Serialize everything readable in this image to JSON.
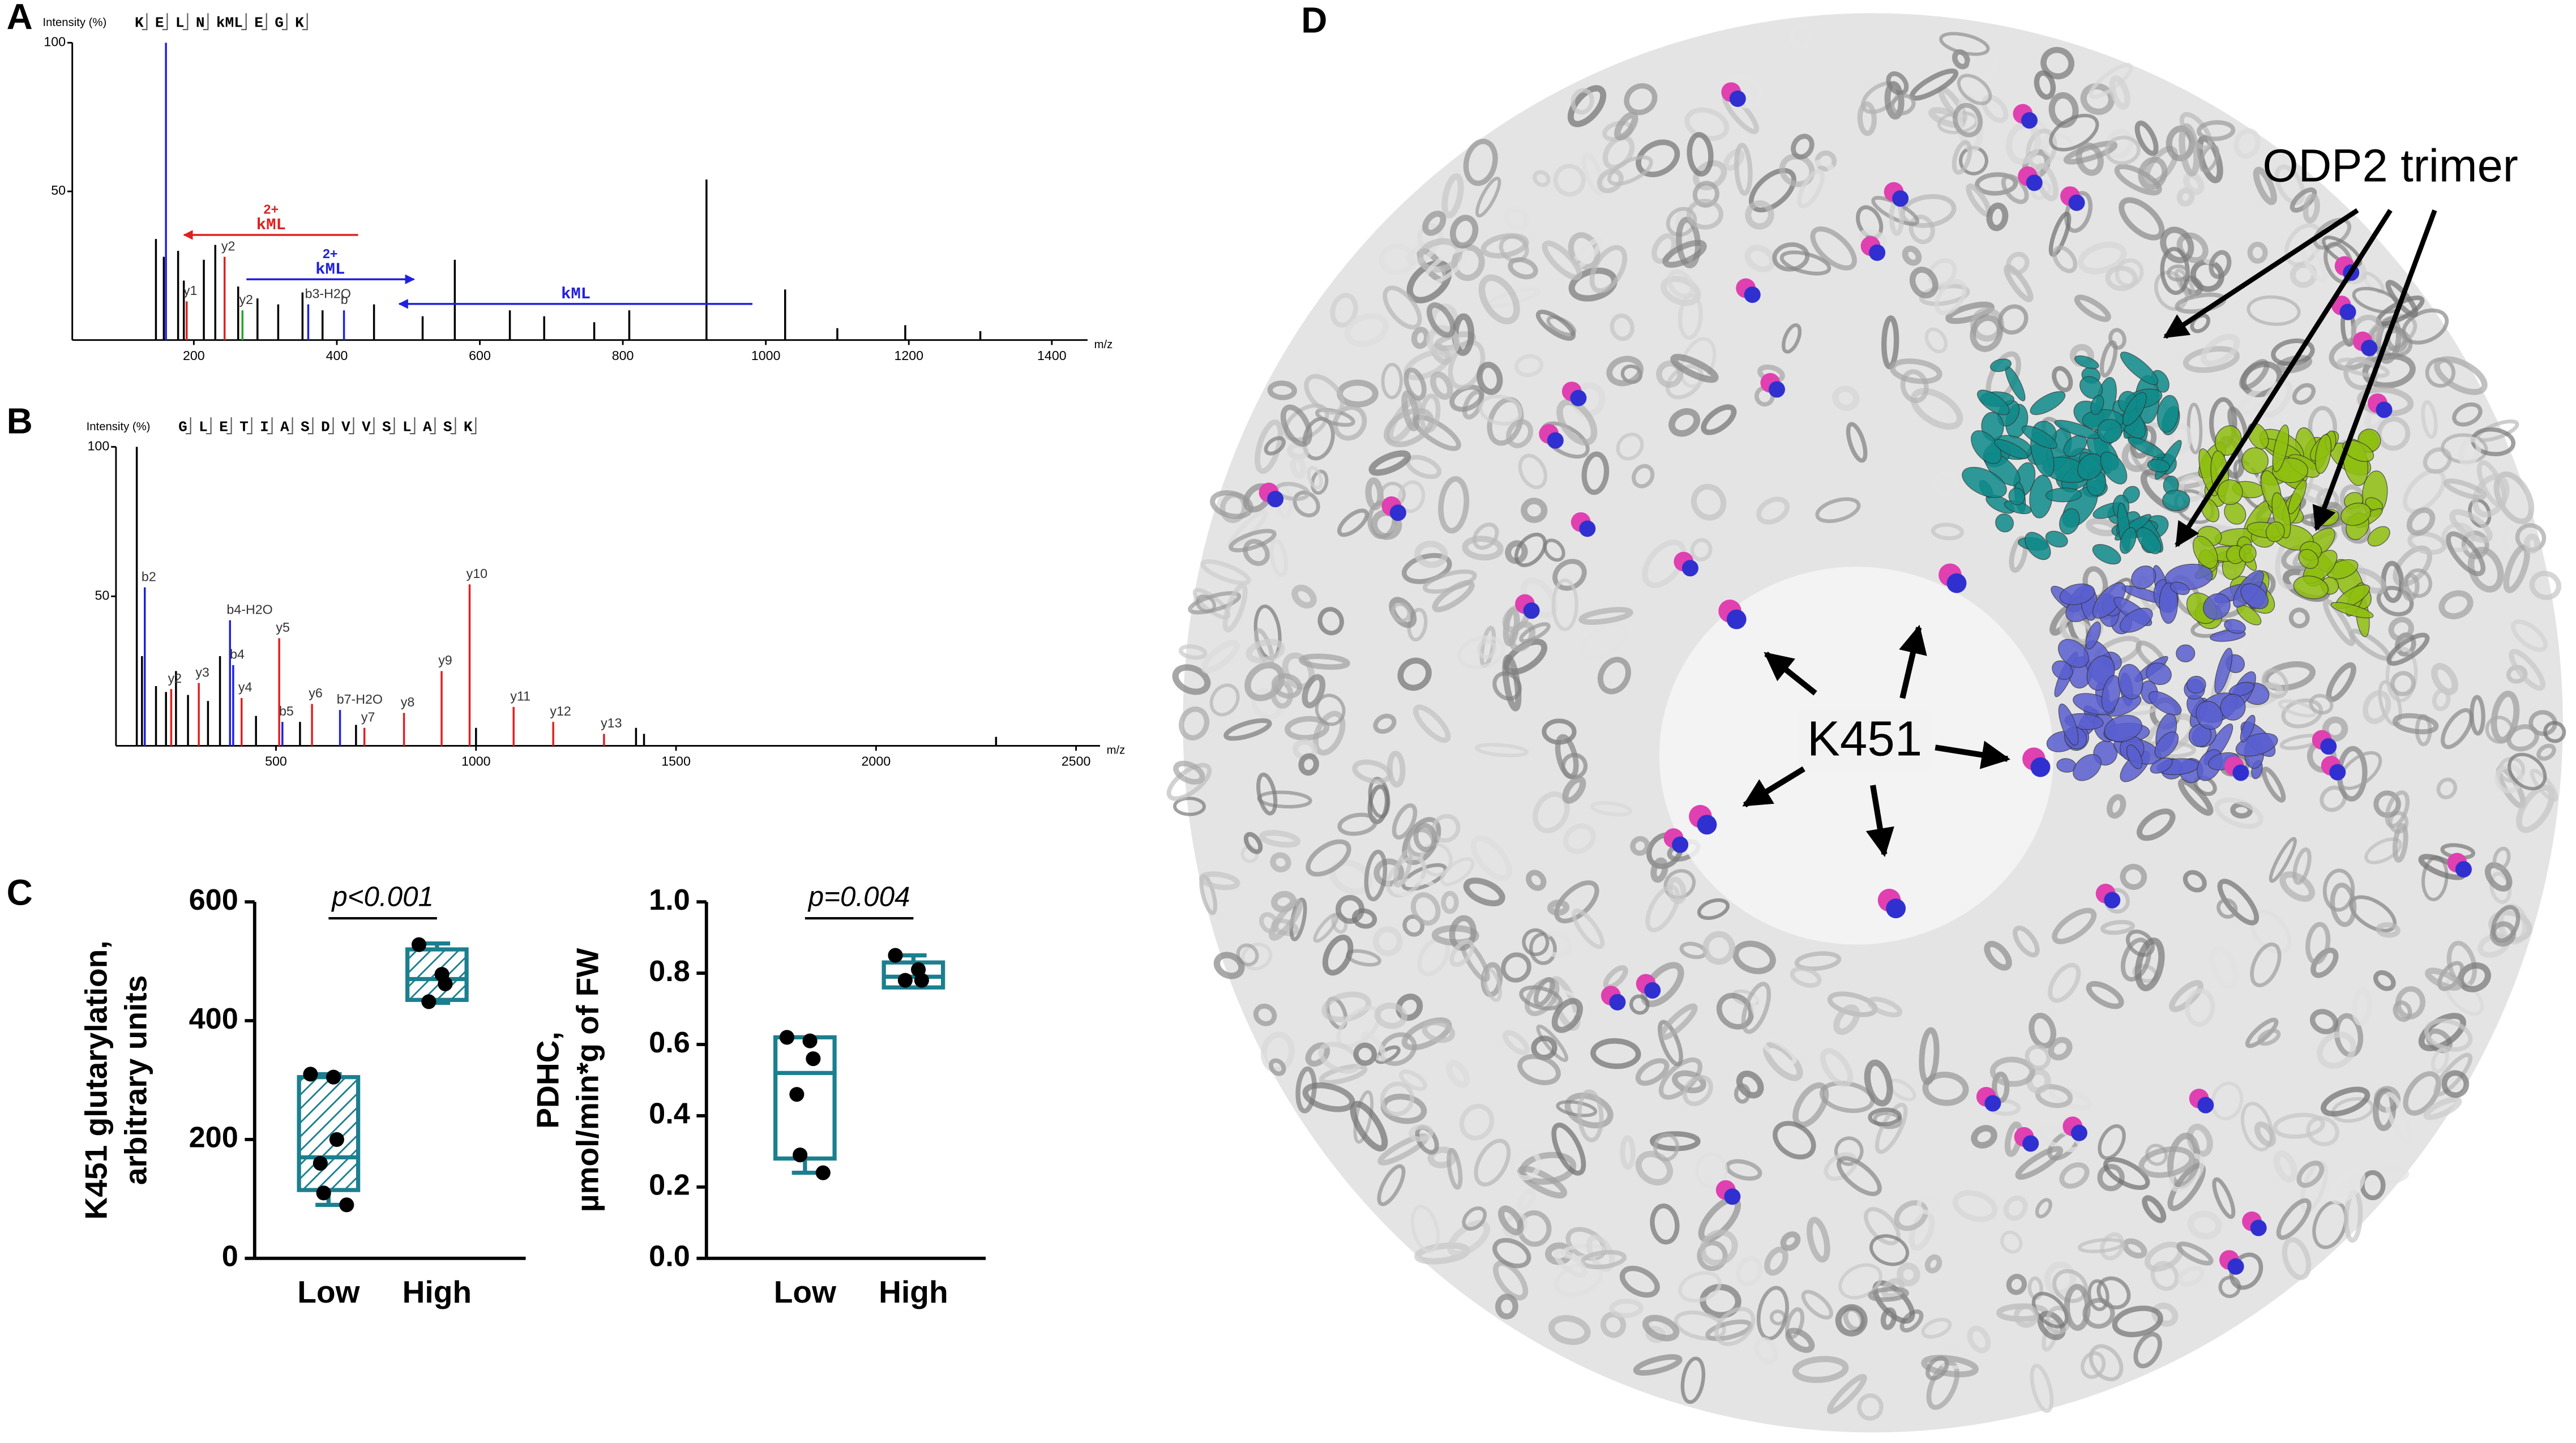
{
  "chart_data": [
    {
      "type": "spectrum",
      "panel": "A",
      "ylabel": "Intensity (%)",
      "sequence": [
        "K",
        "E",
        "L",
        "N",
        "kML",
        "E",
        "G",
        "K"
      ],
      "xlabel": "m/z",
      "xlim": [
        30,
        1450
      ],
      "xticks": [
        200,
        400,
        600,
        800,
        1000,
        1200,
        1400
      ],
      "ylim": [
        0,
        100
      ],
      "yticks": [
        50,
        100
      ],
      "series": [
        {
          "color": "#000000",
          "x": [
            147,
            158,
            178,
            186,
            214,
            230,
            262,
            289,
            318,
            352,
            380,
            452,
            520,
            565,
            642,
            690,
            760,
            809,
            917,
            1027,
            1100,
            1195,
            1300
          ],
          "values": [
            34,
            28,
            30,
            20,
            27,
            32,
            18,
            14,
            12,
            16,
            10,
            12,
            8,
            27,
            10,
            8,
            6,
            10,
            54,
            17,
            4,
            5,
            3
          ],
          "labels": [
            null,
            null,
            null,
            null,
            null,
            null,
            null,
            null,
            null,
            null,
            null,
            null,
            null,
            null,
            null,
            null,
            null,
            null,
            null,
            null,
            null,
            null,
            null
          ]
        },
        {
          "color": "#e02020",
          "x": [
            190,
            243
          ],
          "values": [
            13,
            28
          ],
          "labels": [
            "y1",
            "y2"
          ]
        },
        {
          "color": "#22aa22",
          "x": [
            268
          ],
          "values": [
            10
          ],
          "labels": [
            "y2"
          ]
        },
        {
          "color": "#2020e0",
          "x": [
            161,
            360,
            410
          ],
          "values": [
            100,
            12,
            10
          ],
          "labels": [
            null,
            "b3-H2O",
            "b"
          ]
        }
      ],
      "annotations": [
        {
          "text": "kML",
          "charge": "2+",
          "color": "#e02020"
        },
        {
          "text": "kML",
          "charge": "2+",
          "color": "#2020e0"
        },
        {
          "text": "kML",
          "color": "#2020e0"
        }
      ]
    },
    {
      "type": "spectrum",
      "panel": "B",
      "ylabel": "Intensity (%)",
      "sequence": [
        "G",
        "L",
        "E",
        "T",
        "I",
        "A",
        "S",
        "D",
        "V",
        "V",
        "S",
        "L",
        "A",
        "S",
        "K"
      ],
      "xlabel": "m/z",
      "xlim": [
        100,
        2560
      ],
      "xticks": [
        500,
        1000,
        1500,
        2000,
        2500
      ],
      "ylim": [
        0,
        100
      ],
      "yticks": [
        50,
        100
      ],
      "series": [
        {
          "color": "#000000",
          "x": [
            152,
            165,
            200,
            225,
            250,
            280,
            330,
            360,
            450,
            560,
            700,
            1000,
            1400,
            1420,
            2300
          ],
          "values": [
            100,
            30,
            20,
            18,
            25,
            17,
            15,
            30,
            10,
            8,
            7,
            6,
            6,
            4,
            3
          ],
          "labels": [
            null,
            null,
            null,
            null,
            null,
            null,
            null,
            null,
            null,
            null,
            null,
            null,
            null,
            null,
            null
          ]
        },
        {
          "color": "#2020e0",
          "x": [
            172,
            385,
            393,
            516,
            660
          ],
          "values": [
            53,
            42,
            27,
            8,
            12
          ],
          "labels": [
            "b2",
            "b4-H2O",
            "b4",
            "b5",
            "b7-H2O"
          ]
        },
        {
          "color": "#e02020",
          "x": [
            238,
            307,
            414,
            508,
            590,
            721,
            820,
            914,
            984,
            1094,
            1193,
            1320
          ],
          "values": [
            19,
            21,
            16,
            36,
            14,
            6,
            11,
            25,
            54,
            13,
            8,
            4
          ],
          "labels": [
            "y2",
            "y3",
            "y4",
            "y5",
            "y6",
            "y7",
            "y8",
            "y9",
            "y10",
            "y11",
            "y12",
            "y13"
          ]
        }
      ]
    },
    {
      "type": "box",
      "panel": "C",
      "ylabel": [
        "K451 glutarylation,",
        "arbitrary units"
      ],
      "categories": [
        "Low",
        "High"
      ],
      "ylim": [
        0,
        600
      ],
      "yticks": [
        0,
        200,
        400,
        600
      ],
      "color": "#1b7f8f",
      "hatch": true,
      "boxes": [
        {
          "min": 90,
          "q1": 115,
          "median": 170,
          "q3": 305,
          "max": 310
        },
        {
          "min": 430,
          "q1": 435,
          "median": 470,
          "q3": 520,
          "max": 530
        }
      ],
      "points": [
        [
          310,
          305,
          200,
          160,
          110,
          90
        ],
        [
          528,
          478,
          462,
          432
        ]
      ],
      "annotation": "p<0.001"
    },
    {
      "type": "box",
      "ylabel": [
        "PDHC,",
        "µmol/min*g of FW"
      ],
      "categories": [
        "Low",
        "High"
      ],
      "ylim": [
        0,
        1
      ],
      "yticks": [
        {
          "value": 0,
          "label": "0.0"
        },
        0.2,
        0.4,
        0.6,
        0.8,
        {
          "value": 1,
          "label": "1.0"
        }
      ],
      "color": "#1b7f8f",
      "hatch": false,
      "boxes": [
        {
          "min": 0.24,
          "q1": 0.28,
          "median": 0.52,
          "q3": 0.62,
          "max": 0.62
        },
        {
          "min": 0.76,
          "q1": 0.76,
          "median": 0.79,
          "q3": 0.83,
          "max": 0.85
        }
      ],
      "points": [
        [
          0.62,
          0.61,
          0.56,
          0.46,
          0.29,
          0.24
        ],
        [
          0.85,
          0.81,
          0.78,
          0.78
        ]
      ],
      "annotation": "p=0.004"
    }
  ],
  "structure": {
    "panel": "D",
    "title": "ODP2 trimer",
    "site": "K451"
  }
}
